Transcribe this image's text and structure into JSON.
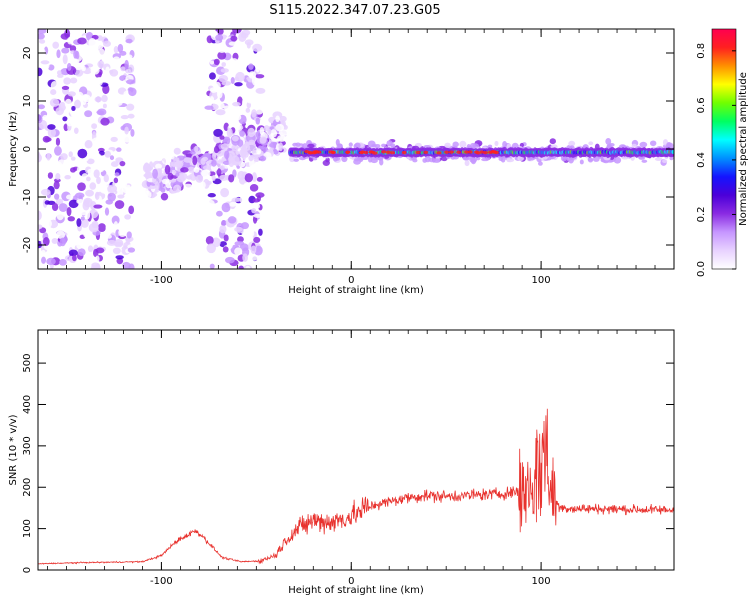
{
  "page": {
    "title": "S115.2022.347.07.23.G05"
  },
  "colors": {
    "snr_line": "#e8322e",
    "spectrogram_ramp": [
      "#ffffff",
      "#e8d2ff",
      "#c696ff",
      "#8a2be2",
      "#4b00d9",
      "#1414ff",
      "#0090ff",
      "#00ffff",
      "#00ff60",
      "#70ff00",
      "#ffff00",
      "#ff9000",
      "#ff2020",
      "#ff0050"
    ],
    "axis": "#000000"
  },
  "chart_data": [
    {
      "type": "heatmap",
      "title": "",
      "xlabel": "Height of straight line (km)",
      "ylabel": "Frequency (Hz)",
      "xlim": [
        -165,
        170
      ],
      "ylim": [
        -25,
        25
      ],
      "x_ticks": [
        -100,
        0,
        100
      ],
      "x_tick_labels": [
        "-100",
        "0",
        "100"
      ],
      "y_ticks": [
        -20,
        -10,
        0,
        10,
        20
      ],
      "y_tick_labels": [
        "-20",
        "-10",
        "0",
        "10",
        "20"
      ],
      "colorbar": {
        "label": "Normalized spectral amplitude",
        "range": [
          0,
          0.88
        ],
        "ticks": [
          0.0,
          0.2,
          0.4,
          0.6,
          0.8
        ],
        "tick_labels": [
          "0.0",
          "0.2",
          "0.4",
          "0.6",
          "0.8"
        ]
      },
      "features": [
        {
          "name": "noise",
          "x_range": [
            -165,
            -115
          ],
          "freq_range": [
            -25,
            25
          ],
          "amplitude": 0.12
        },
        {
          "name": "noise",
          "x_range": [
            -75,
            -47
          ],
          "freq_range": [
            -25,
            25
          ],
          "amplitude": 0.12
        },
        {
          "name": "sloped-signal",
          "x_start": -108,
          "freq_start": -7,
          "x_end": -35,
          "freq_end": 3,
          "amplitude": 0.3
        },
        {
          "name": "carrier-band",
          "x_range": [
            -32,
            170
          ],
          "freq": -0.7,
          "amplitude": 0.55
        }
      ]
    },
    {
      "type": "line",
      "title": "",
      "xlabel": "Height of straight line (km)",
      "ylabel": "SNR (10 * v/v)",
      "xlim": [
        -165,
        170
      ],
      "ylim": [
        0,
        580
      ],
      "x_ticks": [
        -100,
        0,
        100
      ],
      "x_tick_labels": [
        "-100",
        "0",
        "100"
      ],
      "y_ticks": [
        0,
        100,
        200,
        300,
        400,
        500
      ],
      "y_tick_labels": [
        "0",
        "100",
        "200",
        "300",
        "400",
        "500"
      ],
      "series": [
        {
          "x": [
            -165,
            -140,
            -110,
            -100,
            -92,
            -86,
            -82,
            -78,
            -74,
            -68,
            -58,
            -48,
            -40,
            -34,
            -28,
            -20,
            -10,
            0,
            10,
            20,
            30,
            40,
            50,
            60,
            70,
            80,
            88,
            94,
            98,
            100,
            102,
            104,
            106,
            110,
            120,
            130,
            140,
            150,
            160,
            170
          ],
          "y": [
            15,
            18,
            20,
            35,
            70,
            85,
            95,
            80,
            60,
            30,
            20,
            22,
            35,
            75,
            100,
            120,
            115,
            130,
            155,
            165,
            175,
            180,
            178,
            180,
            182,
            185,
            190,
            200,
            230,
            260,
            290,
            250,
            180,
            150,
            148,
            148,
            147,
            146,
            145,
            145
          ]
        }
      ]
    }
  ]
}
